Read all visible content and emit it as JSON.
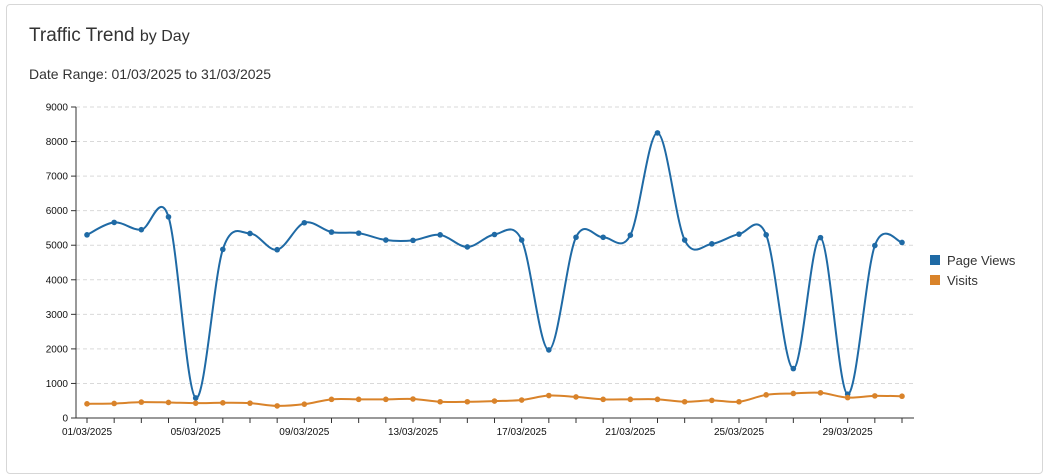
{
  "header": {
    "title_main": "Traffic Trend",
    "title_sub": "by Day",
    "date_range": "Date Range: 01/03/2025 to 31/03/2025"
  },
  "colors": {
    "page_views": "#1f6aa5",
    "visits": "#d9832a"
  },
  "chart_data": {
    "type": "line",
    "title": "Traffic Trend by Day",
    "xlabel": "",
    "ylabel": "",
    "ylim": [
      0,
      9000
    ],
    "yticks": [
      0,
      1000,
      2000,
      3000,
      4000,
      5000,
      6000,
      7000,
      8000,
      9000
    ],
    "x": [
      "01/03/2025",
      "02/03/2025",
      "03/03/2025",
      "04/03/2025",
      "05/03/2025",
      "06/03/2025",
      "07/03/2025",
      "08/03/2025",
      "09/03/2025",
      "10/03/2025",
      "11/03/2025",
      "12/03/2025",
      "13/03/2025",
      "14/03/2025",
      "15/03/2025",
      "16/03/2025",
      "17/03/2025",
      "18/03/2025",
      "19/03/2025",
      "20/03/2025",
      "21/03/2025",
      "22/03/2025",
      "23/03/2025",
      "24/03/2025",
      "25/03/2025",
      "26/03/2025",
      "27/03/2025",
      "28/03/2025",
      "29/03/2025",
      "30/03/2025",
      "31/03/2025"
    ],
    "xtick_labels": [
      "01/03/2025",
      "05/03/2025",
      "09/03/2025",
      "13/03/2025",
      "17/03/2025",
      "21/03/2025",
      "25/03/2025",
      "29/03/2025"
    ],
    "grid": true,
    "legend": "right",
    "series": [
      {
        "name": "Page Views",
        "values": [
          5300,
          5660,
          5450,
          5820,
          580,
          4880,
          5340,
          4870,
          5650,
          5380,
          5350,
          5150,
          5140,
          5300,
          4950,
          5310,
          5150,
          1970,
          5230,
          5230,
          5290,
          8250,
          5150,
          5040,
          5320,
          5300,
          1430,
          5220,
          690,
          4990,
          5080
        ]
      },
      {
        "name": "Visits",
        "values": [
          410,
          420,
          460,
          450,
          430,
          440,
          430,
          350,
          400,
          540,
          540,
          540,
          550,
          470,
          470,
          490,
          520,
          650,
          610,
          540,
          540,
          540,
          470,
          510,
          470,
          670,
          710,
          730,
          590,
          640,
          630
        ]
      }
    ]
  }
}
